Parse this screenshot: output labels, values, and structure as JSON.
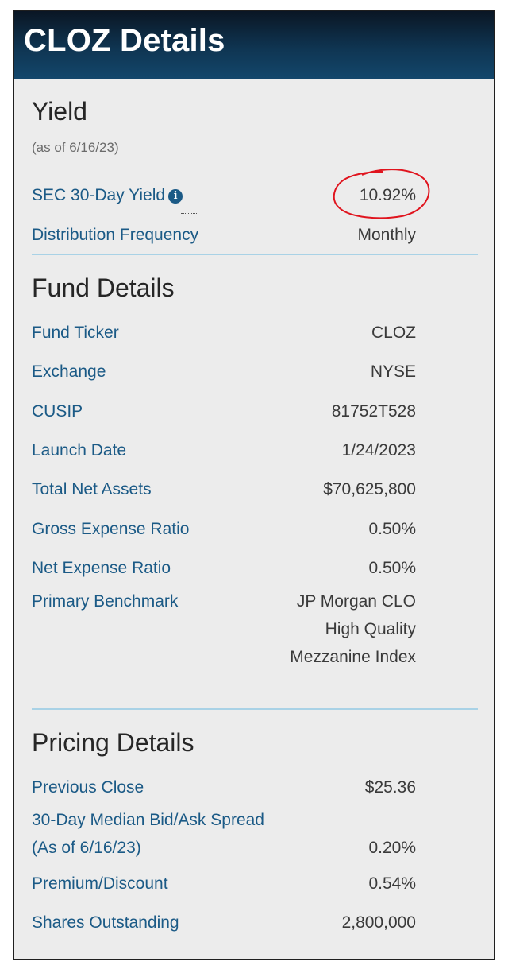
{
  "header": {
    "title": "CLOZ Details"
  },
  "yield": {
    "title": "Yield",
    "as_of": "(as of 6/16/23)",
    "rows": [
      {
        "label": "SEC 30-Day Yield",
        "value": "10.92%"
      },
      {
        "label": "Distribution Frequency",
        "value": "Monthly"
      }
    ]
  },
  "fund": {
    "title": "Fund Details",
    "rows": [
      {
        "label": "Fund Ticker",
        "value": "CLOZ"
      },
      {
        "label": "Exchange",
        "value": "NYSE"
      },
      {
        "label": "CUSIP",
        "value": "81752T528"
      },
      {
        "label": "Launch Date",
        "value": "1/24/2023"
      },
      {
        "label": "Total Net Assets",
        "value": "$70,625,800"
      },
      {
        "label": "Gross Expense Ratio",
        "value": "0.50%"
      },
      {
        "label": "Net Expense Ratio",
        "value": "0.50%"
      },
      {
        "label": "Primary Benchmark",
        "value_lines": [
          "JP Morgan CLO",
          "High Quality",
          "Mezzanine Index"
        ]
      }
    ]
  },
  "pricing": {
    "title": "Pricing Details",
    "rows": [
      {
        "label": "Previous Close",
        "value": "$25.36"
      },
      {
        "label_lines": [
          "30-Day Median Bid/Ask Spread",
          "(As of 6/16/23)"
        ],
        "value": "0.20%"
      },
      {
        "label": "Premium/Discount",
        "value": "0.54%"
      },
      {
        "label": "Shares Outstanding",
        "value": "2,800,000"
      }
    ]
  },
  "icons": {
    "info": "info-circle-icon",
    "annotation": "red-hand-drawn-circle"
  },
  "colors": {
    "header": "#0f3552",
    "label": "#1b5a86",
    "divider": "#a9d2e6",
    "annotation": "#e0141e"
  }
}
